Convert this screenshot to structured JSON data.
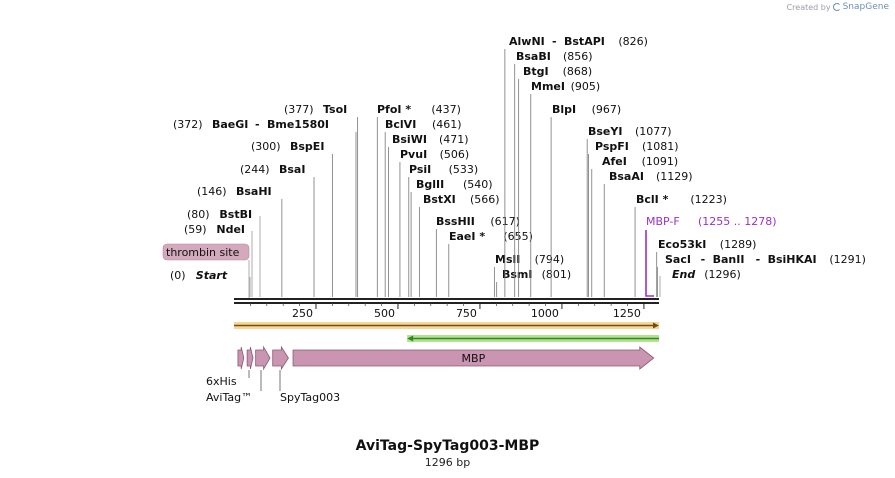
{
  "credit": {
    "prefix": "Created by",
    "brand": "SnapGene"
  },
  "title": "AviTag-SpyTag003-MBP",
  "subtitle": "1296 bp",
  "map": {
    "length": 1296,
    "ticks": [
      {
        "value": 250,
        "label": "250"
      },
      {
        "value": 500,
        "label": "500"
      },
      {
        "value": 750,
        "label": "750"
      },
      {
        "value": 1000,
        "label": "1000"
      },
      {
        "value": 1250,
        "label": "1250"
      }
    ],
    "sites": [
      {
        "id": "start",
        "name": "Start",
        "pos": "(0)",
        "bp": 0,
        "italic": true
      },
      {
        "id": "ndei",
        "name": "NdeI",
        "pos": "(59)",
        "bp": 59
      },
      {
        "id": "bstbi",
        "name": "BstBI",
        "pos": "(80)",
        "bp": 80
      },
      {
        "id": "bsahi",
        "name": "BsaHI",
        "pos": "(146)",
        "bp": 146
      },
      {
        "id": "bsai",
        "name": "BsaI",
        "pos": "(244)",
        "bp": 244
      },
      {
        "id": "bspei",
        "name": "BspEI",
        "pos": "(300)",
        "bp": 300
      },
      {
        "id": "baegi",
        "name": "BaeGI",
        "name2": "Bme1580I",
        "pos": "(372)",
        "bp": 372
      },
      {
        "id": "tsoi",
        "name": "TsoI",
        "pos": "(377)",
        "bp": 377
      },
      {
        "id": "pfoi",
        "name": "PfoI *",
        "pos": "(437)",
        "bp": 437
      },
      {
        "id": "bclvi",
        "name": "BclVI",
        "pos": "(461)",
        "bp": 461
      },
      {
        "id": "bsiwi",
        "name": "BsiWI",
        "pos": "(471)",
        "bp": 471
      },
      {
        "id": "pvui",
        "name": "PvuI",
        "pos": "(506)",
        "bp": 506
      },
      {
        "id": "psii",
        "name": "PsiI",
        "pos": "(533)",
        "bp": 533
      },
      {
        "id": "bglii",
        "name": "BglII",
        "pos": "(540)",
        "bp": 540
      },
      {
        "id": "bstxi",
        "name": "BstXI",
        "pos": "(566)",
        "bp": 566
      },
      {
        "id": "bsshii",
        "name": "BssHII",
        "pos": "(617)",
        "bp": 617
      },
      {
        "id": "eaei",
        "name": "EaeI *",
        "pos": "(655)",
        "bp": 655
      },
      {
        "id": "msli",
        "name": "MslI",
        "pos": "(794)",
        "bp": 794
      },
      {
        "id": "bsmi",
        "name": "BsmI",
        "pos": "(801)",
        "bp": 801
      },
      {
        "id": "alwni",
        "name": "AlwNI",
        "name2": "BstAPI",
        "pos": "(826)",
        "bp": 826
      },
      {
        "id": "bsabi",
        "name": "BsaBI",
        "pos": "(856)",
        "bp": 856
      },
      {
        "id": "btgi",
        "name": "BtgI",
        "pos": "(868)",
        "bp": 868
      },
      {
        "id": "mmei",
        "name": "MmeI",
        "pos": "(905)",
        "bp": 905
      },
      {
        "id": "blpi",
        "name": "BlpI",
        "pos": "(967)",
        "bp": 967
      },
      {
        "id": "bseyi",
        "name": "BseYI",
        "pos": "(1077)",
        "bp": 1077
      },
      {
        "id": "pspfi",
        "name": "PspFI",
        "pos": "(1081)",
        "bp": 1081
      },
      {
        "id": "afei",
        "name": "AfeI",
        "pos": "(1091)",
        "bp": 1091
      },
      {
        "id": "bsaai",
        "name": "BsaAI",
        "pos": "(1129)",
        "bp": 1129
      },
      {
        "id": "bcli",
        "name": "BclI *",
        "pos": "(1223)",
        "bp": 1223
      },
      {
        "id": "eco53ki",
        "name": "Eco53kI",
        "pos": "(1289)",
        "bp": 1289
      },
      {
        "id": "saci",
        "name": "SacI",
        "name2": "BanII",
        "name3": "BsiHKAI",
        "pos": "(1291)",
        "bp": 1291
      },
      {
        "id": "end",
        "name": "End",
        "pos": "(1296)",
        "bp": 1296,
        "italic": true
      }
    ],
    "primer": {
      "name": "MBP-F",
      "range": "(1255 .. 1278)",
      "start": 1255,
      "end": 1278,
      "color": "#9b30c8"
    },
    "site_feature": {
      "name": "thrombin site",
      "bp": 52,
      "color": "#d4a9bc"
    },
    "orf_forward": {
      "start": 0,
      "end": 1296,
      "color": "#e0b040",
      "fill": "#f3d89a"
    },
    "orf_reverse": {
      "start": 528,
      "end": 1296,
      "color": "#2f8a24",
      "fill": "#b5e08f"
    },
    "features": [
      {
        "id": "6xhis",
        "name": "6xHis",
        "start": 12,
        "end": 30
      },
      {
        "id": "avitag",
        "name": "AviTag™",
        "start": 40,
        "end": 58
      },
      {
        "id": "spytag003",
        "name": "SpyTag003",
        "start": 66,
        "end": 110
      },
      {
        "id": "spytag003b",
        "name": "",
        "start": 118,
        "end": 166
      },
      {
        "id": "mbp",
        "name": "MBP",
        "start": 180,
        "end": 1280
      }
    ],
    "feature_labels": [
      {
        "text": "6xHis"
      },
      {
        "text": "AviTag™"
      },
      {
        "text": "SpyTag003"
      }
    ],
    "feature_color": "#c995b1",
    "feature_stroke": "#8a5a75"
  }
}
